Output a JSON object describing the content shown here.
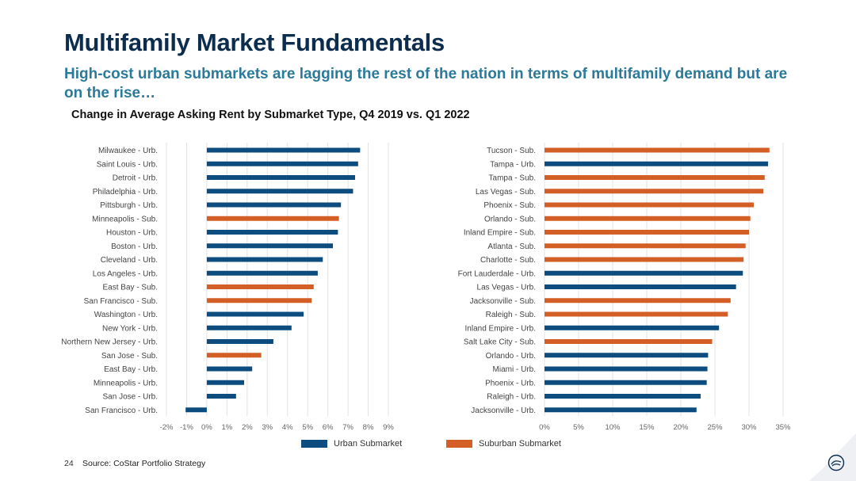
{
  "header": {
    "title": "Multifamily Market Fundamentals",
    "subtitle": "High-cost urban submarkets are lagging the rest of the nation in terms of multifamily demand but are on the rise…",
    "chart_title": "Change in Average Asking Rent by Submarket Type, Q4 2019 vs. Q1 2022"
  },
  "legend": {
    "urban": "Urban Submarket",
    "suburban": "Suburban Submarket"
  },
  "footer": {
    "page_number": "24",
    "source": "Source: CoStar Portfolio Strategy"
  },
  "colors": {
    "urban": "#0d4c7e",
    "suburban": "#d35f26",
    "title": "#0d2d4f",
    "subtitle": "#2b7a9a"
  },
  "chart_data": [
    {
      "type": "bar",
      "orientation": "horizontal",
      "xlim": [
        -2,
        9
      ],
      "x_ticks": [
        "-2%",
        "-1%",
        "0%",
        "1%",
        "2%",
        "3%",
        "4%",
        "5%",
        "6%",
        "7%",
        "8%",
        "9%"
      ],
      "grid": true,
      "categories": [
        "Milwaukee - Urb.",
        "Saint Louis - Urb.",
        "Detroit - Urb.",
        "Philadelphia - Urb.",
        "Pittsburgh - Urb.",
        "Minneapolis - Sub.",
        "Houston - Urb.",
        "Boston - Urb.",
        "Cleveland - Urb.",
        "Los Angeles - Urb.",
        "East Bay - Sub.",
        "San Francisco - Sub.",
        "Washington - Urb.",
        "New York - Urb.",
        "Northern New Jersey - Urb.",
        "San Jose - Sub.",
        "East Bay - Urb.",
        "Minneapolis - Urb.",
        "San Jose - Urb.",
        "San Francisco - Urb."
      ],
      "values": [
        7.6,
        7.5,
        7.35,
        7.25,
        6.65,
        6.55,
        6.5,
        6.25,
        5.75,
        5.5,
        5.3,
        5.2,
        4.8,
        4.2,
        3.3,
        2.7,
        2.25,
        1.85,
        1.45,
        -1.05
      ],
      "segment": [
        "urban",
        "urban",
        "urban",
        "urban",
        "urban",
        "suburban",
        "urban",
        "urban",
        "urban",
        "urban",
        "suburban",
        "suburban",
        "urban",
        "urban",
        "urban",
        "suburban",
        "urban",
        "urban",
        "urban",
        "urban"
      ]
    },
    {
      "type": "bar",
      "orientation": "horizontal",
      "xlim": [
        0,
        35
      ],
      "x_ticks": [
        "0%",
        "5%",
        "10%",
        "15%",
        "20%",
        "25%",
        "30%",
        "35%"
      ],
      "grid": true,
      "categories": [
        "Tucson - Sub.",
        "Tampa - Urb.",
        "Tampa - Sub.",
        "Las Vegas - Sub.",
        "Phoenix - Sub.",
        "Orlando - Sub.",
        "Inland Empire - Sub.",
        "Atlanta - Sub.",
        "Charlotte - Sub.",
        "Fort Lauderdale - Urb.",
        "Las Vegas - Urb.",
        "Jacksonville - Sub.",
        "Raleigh - Sub.",
        "Inland Empire - Urb.",
        "Salt Lake City - Sub.",
        "Orlando - Urb.",
        "Miami - Urb.",
        "Phoenix - Urb.",
        "Raleigh - Urb.",
        "Jacksonville - Urb."
      ],
      "values": [
        33.0,
        32.8,
        32.3,
        32.1,
        30.7,
        30.2,
        30.0,
        29.5,
        29.2,
        29.1,
        28.1,
        27.3,
        26.9,
        25.6,
        24.6,
        24.0,
        23.9,
        23.8,
        22.9,
        22.3
      ],
      "segment": [
        "suburban",
        "urban",
        "suburban",
        "suburban",
        "suburban",
        "suburban",
        "suburban",
        "suburban",
        "suburban",
        "urban",
        "urban",
        "suburban",
        "suburban",
        "urban",
        "suburban",
        "urban",
        "urban",
        "urban",
        "urban",
        "urban"
      ]
    }
  ]
}
